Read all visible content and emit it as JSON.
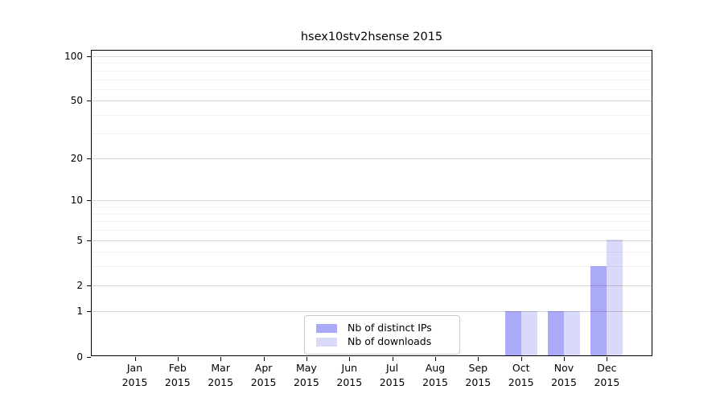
{
  "title": "hsex10stv2hsense 2015",
  "chart_data": {
    "type": "bar",
    "title": "hsex10stv2hsense 2015",
    "categories": [
      "Jan 2015",
      "Feb 2015",
      "Mar 2015",
      "Apr 2015",
      "May 2015",
      "Jun 2015",
      "Jul 2015",
      "Aug 2015",
      "Sep 2015",
      "Oct 2015",
      "Nov 2015",
      "Dec 2015"
    ],
    "series": [
      {
        "name": "Nb of distinct IPs",
        "color": "#aaaaf9",
        "values": [
          0,
          0,
          0,
          0,
          0,
          0,
          0,
          0,
          0,
          1,
          1,
          3
        ]
      },
      {
        "name": "Nb of downloads",
        "color": "#d9d9fa",
        "values": [
          0,
          0,
          0,
          0,
          0,
          0,
          0,
          0,
          0,
          1,
          1,
          5
        ]
      }
    ],
    "xlabel": "",
    "ylabel": "",
    "yscale": "log1p",
    "ylim": [
      0,
      110
    ],
    "y_major_ticks": [
      0,
      1,
      2,
      5,
      10,
      20,
      50,
      100
    ],
    "y_minor_ticks": [
      3,
      4,
      6,
      7,
      8,
      9,
      30,
      40,
      60,
      70,
      80,
      90
    ],
    "grid": true,
    "legend_position": "lower center"
  },
  "colors": {
    "background": "#ffffff",
    "axis": "#000000",
    "text": "#000000",
    "grid_major": "rgba(0,0,0,0.16)",
    "grid_minor": "rgba(0,0,0,0.055)",
    "legend_border": "#c9c9c9",
    "bar_distinct_ips": "#aaaaf9",
    "bar_downloads": "#d9d9fa"
  }
}
